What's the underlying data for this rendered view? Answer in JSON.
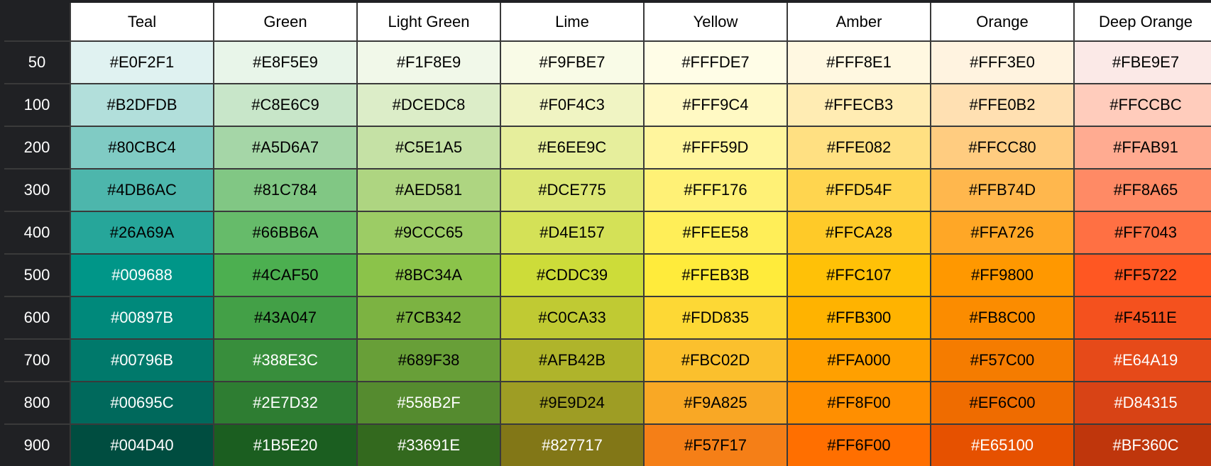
{
  "table": {
    "columns": [
      "Teal",
      "Green",
      "Light Green",
      "Lime",
      "Yellow",
      "Amber",
      "Orange",
      "Deep Orange"
    ],
    "rows": [
      {
        "shade": "50",
        "colors": [
          "#E0F2F1",
          "#E8F5E9",
          "#F1F8E9",
          "#F9FBE7",
          "#FFFDE7",
          "#FFF8E1",
          "#FFF3E0",
          "#FBE9E7"
        ]
      },
      {
        "shade": "100",
        "colors": [
          "#B2DFDB",
          "#C8E6C9",
          "#DCEDC8",
          "#F0F4C3",
          "#FFF9C4",
          "#FFECB3",
          "#FFE0B2",
          "#FFCCBC"
        ]
      },
      {
        "shade": "200",
        "colors": [
          "#80CBC4",
          "#A5D6A7",
          "#C5E1A5",
          "#E6EE9C",
          "#FFF59D",
          "#FFE082",
          "#FFCC80",
          "#FFAB91"
        ]
      },
      {
        "shade": "300",
        "colors": [
          "#4DB6AC",
          "#81C784",
          "#AED581",
          "#DCE775",
          "#FFF176",
          "#FFD54F",
          "#FFB74D",
          "#FF8A65"
        ]
      },
      {
        "shade": "400",
        "colors": [
          "#26A69A",
          "#66BB6A",
          "#9CCC65",
          "#D4E157",
          "#FFEE58",
          "#FFCA28",
          "#FFA726",
          "#FF7043"
        ]
      },
      {
        "shade": "500",
        "colors": [
          "#009688",
          "#4CAF50",
          "#8BC34A",
          "#CDDC39",
          "#FFEB3B",
          "#FFC107",
          "#FF9800",
          "#FF5722"
        ]
      },
      {
        "shade": "600",
        "colors": [
          "#00897B",
          "#43A047",
          "#7CB342",
          "#C0CA33",
          "#FDD835",
          "#FFB300",
          "#FB8C00",
          "#F4511E"
        ]
      },
      {
        "shade": "700",
        "colors": [
          "#00796B",
          "#388E3C",
          "#689F38",
          "#AFB42B",
          "#FBC02D",
          "#FFA000",
          "#F57C00",
          "#E64A19"
        ]
      },
      {
        "shade": "800",
        "colors": [
          "#00695C",
          "#2E7D32",
          "#558B2F",
          "#9E9D24",
          "#F9A825",
          "#FF8F00",
          "#EF6C00",
          "#D84315"
        ]
      },
      {
        "shade": "900",
        "colors": [
          "#004D40",
          "#1B5E20",
          "#33691E",
          "#827717",
          "#F57F17",
          "#FF6F00",
          "#E65100",
          "#BF360C"
        ]
      }
    ]
  }
}
